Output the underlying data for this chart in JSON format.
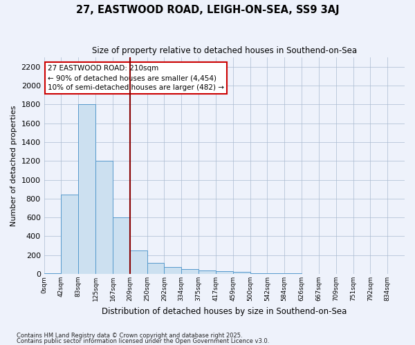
{
  "title": "27, EASTWOOD ROAD, LEIGH-ON-SEA, SS9 3AJ",
  "subtitle": "Size of property relative to detached houses in Southend-on-Sea",
  "xlabel": "Distribution of detached houses by size in Southend-on-Sea",
  "ylabel": "Number of detached properties",
  "footnote1": "Contains HM Land Registry data © Crown copyright and database right 2025.",
  "footnote2": "Contains public sector information licensed under the Open Government Licence v3.0.",
  "bin_labels": [
    "0sqm",
    "42sqm",
    "83sqm",
    "125sqm",
    "167sqm",
    "209sqm",
    "250sqm",
    "292sqm",
    "334sqm",
    "375sqm",
    "417sqm",
    "459sqm",
    "500sqm",
    "542sqm",
    "584sqm",
    "626sqm",
    "667sqm",
    "709sqm",
    "751sqm",
    "792sqm",
    "834sqm"
  ],
  "bar_heights": [
    5,
    840,
    1800,
    1200,
    600,
    250,
    120,
    70,
    50,
    40,
    30,
    20,
    10,
    8,
    5,
    3,
    2,
    1,
    1,
    0,
    0
  ],
  "bar_color": "#cce0f0",
  "bar_edge_color": "#5599cc",
  "vline_x": 5,
  "vline_color": "#880000",
  "ylim": [
    0,
    2300
  ],
  "yticks": [
    0,
    200,
    400,
    600,
    800,
    1000,
    1200,
    1400,
    1600,
    1800,
    2000,
    2200
  ],
  "annotation_title": "27 EASTWOOD ROAD: 210sqm",
  "annotation_line1": "← 90% of detached houses are smaller (4,454)",
  "annotation_line2": "10% of semi-detached houses are larger (482) →",
  "annotation_box_color": "#ffffff",
  "annotation_box_edge": "#cc0000",
  "bg_color": "#eef2fb"
}
